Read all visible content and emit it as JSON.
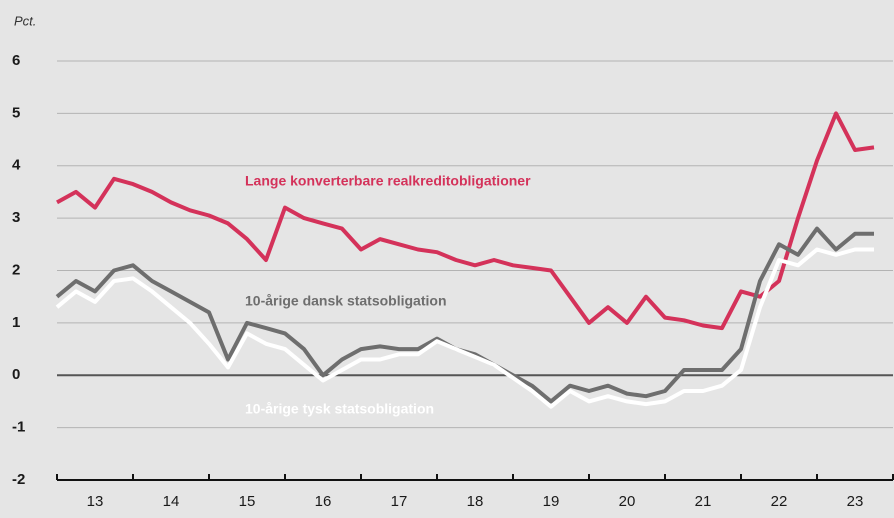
{
  "chart_data": {
    "type": "line",
    "y_label": "Pct.",
    "xlim": [
      2013,
      2024
    ],
    "xticks": [
      {
        "value": 2013.5,
        "label": "13"
      },
      {
        "value": 2014.5,
        "label": "14"
      },
      {
        "value": 2015.5,
        "label": "15"
      },
      {
        "value": 2016.5,
        "label": "16"
      },
      {
        "value": 2017.5,
        "label": "17"
      },
      {
        "value": 2018.5,
        "label": "18"
      },
      {
        "value": 2019.5,
        "label": "19"
      },
      {
        "value": 2020.5,
        "label": "20"
      },
      {
        "value": 2021.5,
        "label": "21"
      },
      {
        "value": 2022.5,
        "label": "22"
      },
      {
        "value": 2023.5,
        "label": "23"
      }
    ],
    "x_minor_ticks": [
      2013,
      2014,
      2015,
      2016,
      2017,
      2018,
      2019,
      2020,
      2021,
      2022,
      2023,
      2024
    ],
    "ylim": [
      -2,
      6
    ],
    "yticks": [
      -2,
      -1,
      0,
      1,
      2,
      3,
      4,
      5,
      6
    ],
    "grid": true,
    "x": [
      2013.0,
      2013.25,
      2013.5,
      2013.75,
      2014.0,
      2014.25,
      2014.5,
      2014.75,
      2015.0,
      2015.25,
      2015.5,
      2015.75,
      2016.0,
      2016.25,
      2016.5,
      2016.75,
      2017.0,
      2017.25,
      2017.5,
      2017.75,
      2018.0,
      2018.25,
      2018.5,
      2018.75,
      2019.0,
      2019.25,
      2019.5,
      2019.75,
      2020.0,
      2020.25,
      2020.5,
      2020.75,
      2021.0,
      2021.25,
      2021.5,
      2021.75,
      2022.0,
      2022.25,
      2022.5,
      2022.75,
      2023.0,
      2023.25,
      2023.5,
      2023.75
    ],
    "series": [
      {
        "name": "Lange konverterbare realkreditobligationer",
        "color": "#d4325a",
        "values": [
          3.3,
          3.5,
          3.2,
          3.75,
          3.65,
          3.5,
          3.3,
          3.15,
          3.05,
          2.9,
          2.6,
          2.2,
          3.2,
          3.0,
          2.9,
          2.8,
          2.4,
          2.6,
          2.5,
          2.4,
          2.35,
          2.2,
          2.1,
          2.2,
          2.1,
          2.05,
          2.0,
          1.5,
          1.0,
          1.3,
          1.0,
          1.5,
          1.1,
          1.05,
          0.95,
          0.9,
          1.6,
          1.5,
          1.8,
          3.0,
          4.1,
          5.0,
          4.3,
          4.35
        ]
      },
      {
        "name": "10-årige dansk statsobligation",
        "color": "#6e6e6e",
        "values": [
          1.5,
          1.8,
          1.6,
          2.0,
          2.1,
          1.8,
          1.6,
          1.4,
          1.2,
          0.3,
          1.0,
          0.9,
          0.8,
          0.5,
          0.0,
          0.3,
          0.5,
          0.55,
          0.5,
          0.5,
          0.7,
          0.5,
          0.4,
          0.2,
          0.0,
          -0.2,
          -0.5,
          -0.2,
          -0.3,
          -0.2,
          -0.35,
          -0.4,
          -0.3,
          0.1,
          0.1,
          0.1,
          0.5,
          1.8,
          2.5,
          2.3,
          2.8,
          2.4,
          2.7,
          2.7
        ]
      },
      {
        "name": "10-årige tysk statsobligation",
        "color": "#ffffff",
        "values": [
          1.3,
          1.6,
          1.4,
          1.8,
          1.85,
          1.6,
          1.3,
          1.0,
          0.6,
          0.15,
          0.8,
          0.6,
          0.5,
          0.2,
          -0.1,
          0.1,
          0.3,
          0.3,
          0.4,
          0.4,
          0.65,
          0.5,
          0.35,
          0.2,
          -0.05,
          -0.3,
          -0.6,
          -0.3,
          -0.5,
          -0.4,
          -0.5,
          -0.55,
          -0.5,
          -0.3,
          -0.3,
          -0.2,
          0.1,
          1.3,
          2.2,
          2.1,
          2.4,
          2.3,
          2.4,
          2.4
        ]
      }
    ]
  }
}
